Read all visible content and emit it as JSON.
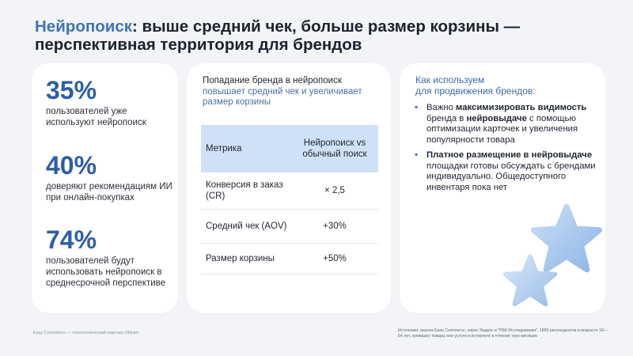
{
  "title": {
    "accent": "Нейропоиск",
    "line1_rest": ": выше средний чек, больше размер корзины —",
    "line2": "перспективная территория для брендов"
  },
  "stats": [
    {
      "value": "35%",
      "text": "пользователей уже используют нейропоиск"
    },
    {
      "value": "40%",
      "text": "доверяют рекомендациям ИИ при онлайн-покупках"
    },
    {
      "value": "74%",
      "text": "пользователей будут использовать нейропоиск в среднесрочной перспективе"
    }
  ],
  "middle": {
    "heading": "Попадание бренда в нейропоиск",
    "subheading": "повышает средний чек и увеличивает размер корзины",
    "table": {
      "headers": [
        "Метрика",
        "Нейропоиск vs обычный поиск"
      ],
      "rows": [
        [
          "Конверсия в заказ (CR)",
          "× 2,5"
        ],
        [
          "Средний чек (AOV)",
          "+30%"
        ],
        [
          "Размер корзины",
          "+50%"
        ]
      ]
    }
  },
  "right": {
    "heading_line1": "Как используем",
    "heading_line2": "для продвижения брендов:",
    "bullet1": {
      "p1": "Важно ",
      "b1": "максимизировать видимость",
      "p2": " бренда в ",
      "b2": "нейровыдаче",
      "p3": " с помощью оптимизации карточек и увеличения популярности товара"
    },
    "bullet2": {
      "b1": "Платное размещение в нейровыдаче",
      "p1": " площадки готовы обсуждать с брендами индивидуально. Общедоступного инвентаря пока нет"
    }
  },
  "footer": {
    "left": "Easy Commerce — технологический партнер Okkam",
    "right": "Источники: анализ Easy Commerce, опрос Яндекс и \"РБК Исследования\", 1850 респондентов в возрасте 18—54 лет, купивших товары или услуги в интернете в течение трех месяцев"
  },
  "colors": {
    "accent": "#3f74b8",
    "stat": "#2d5ea6",
    "table_header": "#cfe1f6",
    "star": "#a9c9ee"
  }
}
